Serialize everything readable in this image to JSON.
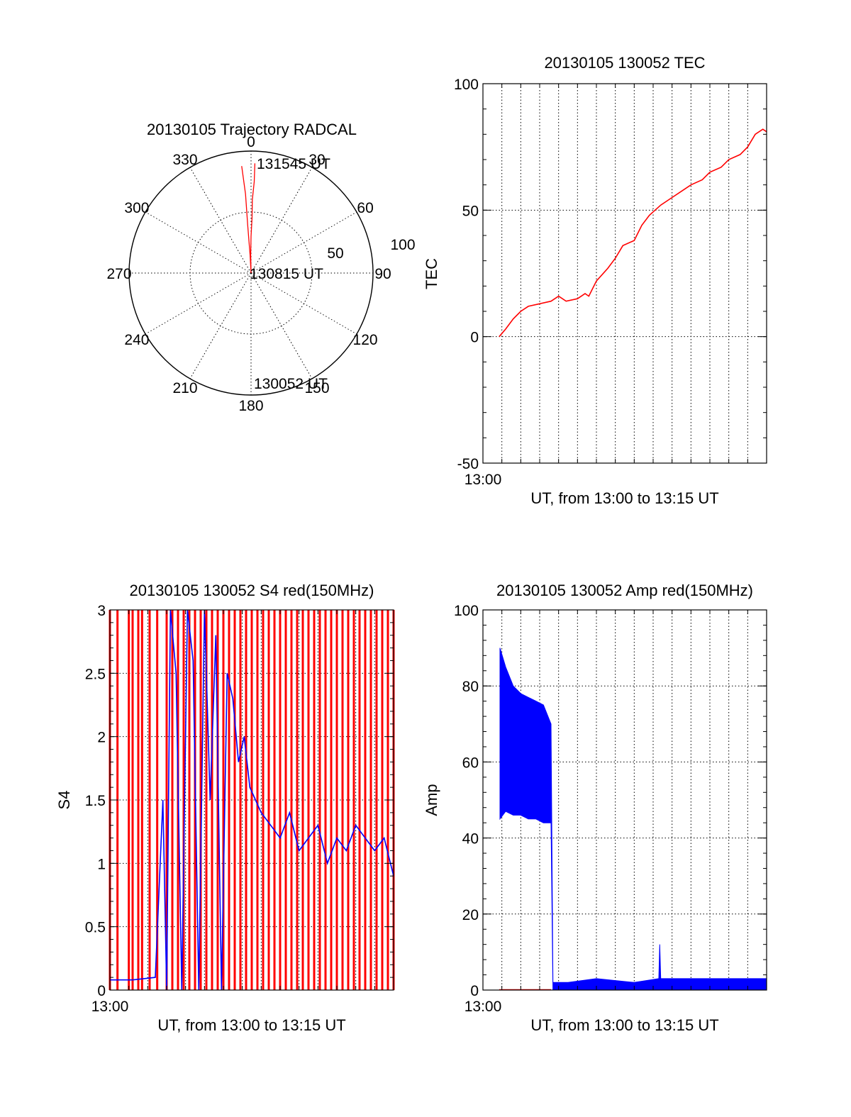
{
  "colors": {
    "red": "#ff0000",
    "blue": "#0000ff",
    "axes": "#000000",
    "background": "#ffffff"
  },
  "chart_data": [
    {
      "type": "polar",
      "title": "20130105 Trajectory RADCAL",
      "angle_labels": [
        "0",
        "30",
        "60",
        "90",
        "120",
        "150",
        "180",
        "210",
        "240",
        "270",
        "300",
        "330"
      ],
      "radius_labels": [
        "50",
        "100"
      ],
      "rlim": [
        0,
        100
      ],
      "annotations": [
        "131545 UT",
        "130815 UT",
        "130052 UT"
      ],
      "grid": true,
      "series": [
        {
          "color": "#ff0000",
          "azimuth": [
            2,
            2,
            1,
            1,
            0,
            359,
            358,
            357,
            356,
            356,
            355
          ],
          "radius": [
            90,
            75,
            60,
            45,
            30,
            15,
            0,
            15,
            40,
            65,
            88
          ]
        }
      ]
    },
    {
      "type": "line",
      "title": "20130105 130052 TEC",
      "ylabel": "TEC",
      "xlabel": "UT, from 13:00 to 13:15 UT",
      "xtick_labels": [
        "13:00"
      ],
      "yticks": [
        "-50",
        "0",
        "50",
        "100"
      ],
      "xlim": [
        0,
        15
      ],
      "ylim": [
        -50,
        100
      ],
      "grid": true,
      "series": [
        {
          "color": "#ff0000",
          "x": [
            0.86,
            1.2,
            1.6,
            2.0,
            2.4,
            3.0,
            3.6,
            4.0,
            4.4,
            5.0,
            5.4,
            5.6,
            6.0,
            6.6,
            7.0,
            7.4,
            8.0,
            8.4,
            8.8,
            9.4,
            10.0,
            10.6,
            11.0,
            11.6,
            12.0,
            12.6,
            13.0,
            13.6,
            14.0,
            14.4,
            14.8,
            15.0
          ],
          "y": [
            0,
            3,
            7,
            10,
            12,
            13,
            14,
            16,
            14,
            15,
            17,
            16,
            22,
            27,
            31,
            36,
            38,
            44,
            48,
            52,
            55,
            58,
            60,
            62,
            65,
            67,
            70,
            72,
            75,
            80,
            82,
            81
          ]
        }
      ]
    },
    {
      "type": "line",
      "title": "20130105 130052 S4 red(150MHz)",
      "ylabel": "S4",
      "xlabel": "UT, from 13:00 to 13:15 UT",
      "xtick_labels": [
        "13:00"
      ],
      "yticks": [
        "0",
        "0.5",
        "1",
        "1.5",
        "2",
        "2.5",
        "3"
      ],
      "xlim": [
        0,
        15
      ],
      "ylim": [
        0,
        3
      ],
      "grid": true,
      "series": [
        {
          "color": "#ff0000",
          "description_mode": "spikes",
          "x": [
            0.0,
            0.4,
            1.0,
            1.2,
            1.5,
            1.7,
            2.1,
            2.5,
            3.0,
            3.3,
            3.6,
            3.9,
            4.2,
            4.5,
            4.8,
            5.1,
            5.4,
            5.7,
            6.0,
            6.3,
            6.6,
            6.9,
            7.2,
            7.5,
            7.8,
            8.1,
            8.4,
            8.7,
            9.0,
            9.3,
            9.6,
            9.9,
            10.2,
            10.5,
            10.8,
            11.1,
            11.4,
            11.7,
            12.0,
            12.3,
            12.6,
            12.9,
            13.2,
            13.5,
            13.8,
            14.1,
            14.4,
            14.7,
            15.0
          ],
          "y": [
            3,
            3,
            3,
            3,
            3,
            3,
            3,
            3,
            3,
            3,
            3,
            3,
            3,
            3,
            3,
            3,
            3,
            3,
            3,
            3,
            3,
            3,
            3,
            3,
            3,
            3,
            3,
            3,
            3,
            3,
            3,
            3,
            3,
            3,
            3,
            3,
            3,
            3,
            3,
            3,
            3,
            3,
            3,
            3,
            3,
            3,
            3,
            3,
            3
          ]
        },
        {
          "color": "#0000ff",
          "x": [
            0.0,
            0.6,
            1.2,
            1.8,
            2.4,
            2.8,
            3.0,
            3.2,
            3.5,
            3.8,
            4.1,
            4.4,
            4.7,
            5.0,
            5.3,
            5.6,
            5.9,
            6.2,
            6.5,
            6.8,
            7.1,
            7.4,
            7.7,
            8.0,
            8.5,
            9.0,
            9.5,
            10.0,
            10.5,
            11.0,
            11.5,
            12.0,
            12.5,
            13.0,
            13.5,
            14.0,
            14.5,
            15.0
          ],
          "y": [
            0.08,
            0.08,
            0.08,
            0.09,
            0.1,
            1.5,
            0.0,
            3.0,
            2.5,
            0.0,
            3.0,
            2.6,
            0.0,
            3.0,
            1.5,
            2.8,
            0.0,
            2.5,
            2.3,
            1.8,
            2.0,
            1.6,
            1.5,
            1.4,
            1.3,
            1.2,
            1.4,
            1.1,
            1.2,
            1.3,
            1.0,
            1.2,
            1.1,
            1.3,
            1.2,
            1.1,
            1.2,
            0.9
          ]
        }
      ]
    },
    {
      "type": "line",
      "title": "20130105 130052 Amp red(150MHz)",
      "ylabel": "Amp",
      "xlabel": "UT, from 13:00 to 13:15 UT",
      "xtick_labels": [
        "13:00"
      ],
      "yticks": [
        "0",
        "20",
        "40",
        "60",
        "80",
        "100"
      ],
      "xlim": [
        0,
        15
      ],
      "ylim": [
        0,
        100
      ],
      "grid": true,
      "series": [
        {
          "color": "#ff0000",
          "x": [
            0.86,
            3.6
          ],
          "y": [
            0.1,
            0.1
          ]
        },
        {
          "color": "#0000ff",
          "description_mode": "noisy_band",
          "x": [
            0.9,
            1.2,
            1.6,
            2.0,
            2.4,
            2.8,
            3.2,
            3.6,
            3.7,
            4.5,
            6.0,
            8.0,
            9.3,
            9.35,
            9.4,
            11.0,
            12.5,
            14.0,
            15.0
          ],
          "y_low": [
            45,
            47,
            46,
            46,
            45,
            45,
            44,
            44,
            0,
            0,
            0,
            0,
            0,
            0,
            0,
            0,
            0,
            0,
            0
          ],
          "y_high": [
            90,
            85,
            80,
            78,
            77,
            76,
            75,
            70,
            2,
            2,
            3,
            2,
            3,
            12,
            3,
            3,
            3,
            3,
            3
          ]
        }
      ]
    }
  ]
}
